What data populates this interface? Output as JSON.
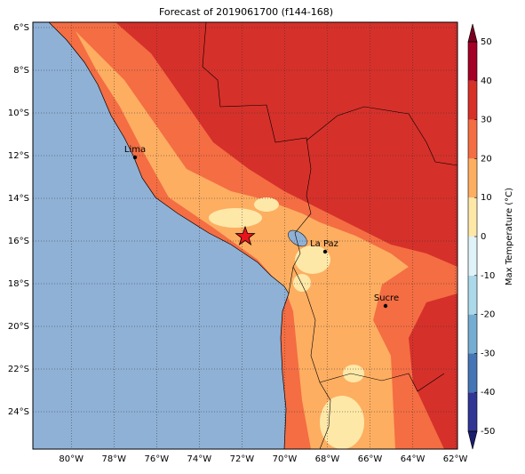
{
  "map": {
    "title": "Forecast of 2019061700 (f144-168)",
    "xlim": [
      -81.8,
      -61.9
    ],
    "ylim": [
      -25.75,
      -5.75
    ],
    "xticks": [
      {
        "value": -80,
        "label": "80°W"
      },
      {
        "value": -78,
        "label": "78°W"
      },
      {
        "value": -76,
        "label": "76°W"
      },
      {
        "value": -74,
        "label": "74°W"
      },
      {
        "value": -72,
        "label": "72°W"
      },
      {
        "value": -70,
        "label": "70°W"
      },
      {
        "value": -68,
        "label": "68°W"
      },
      {
        "value": -66,
        "label": "66°W"
      },
      {
        "value": -64,
        "label": "64°W"
      },
      {
        "value": -62,
        "label": "62°W"
      }
    ],
    "yticks": [
      {
        "value": -6,
        "label": "6°S"
      },
      {
        "value": -8,
        "label": "8°S"
      },
      {
        "value": -10,
        "label": "10°S"
      },
      {
        "value": -12,
        "label": "12°S"
      },
      {
        "value": -14,
        "label": "14°S"
      },
      {
        "value": -16,
        "label": "16°S"
      },
      {
        "value": -18,
        "label": "18°S"
      },
      {
        "value": -20,
        "label": "20°S"
      },
      {
        "value": -22,
        "label": "22°S"
      },
      {
        "value": -24,
        "label": "24°S"
      }
    ],
    "grid": true,
    "cities": [
      "Lima",
      "La Paz",
      "Sucre"
    ],
    "colorbar": {
      "label": "Max Temperature (°C)",
      "lim": [
        -50,
        50
      ],
      "ticks": [
        -50,
        -40,
        -30,
        -20,
        -10,
        0,
        10,
        20,
        30,
        40,
        50
      ],
      "colors": [
        "#313695",
        "#4575b4",
        "#74add1",
        "#abd9e9",
        "#e0f3f8",
        "#fee8a8",
        "#fdae61",
        "#f46d43",
        "#d73027",
        "#a50026"
      ],
      "extend_colors": [
        "#1b1e6e",
        "#7a0020"
      ]
    }
  }
}
